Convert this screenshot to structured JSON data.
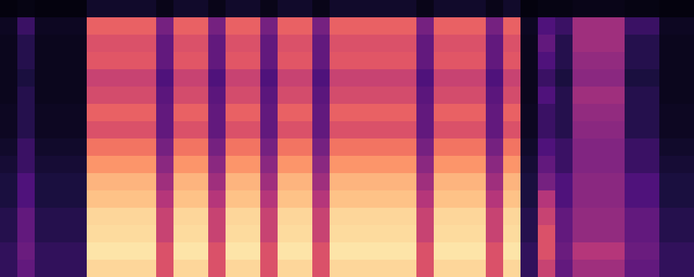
{
  "chart_data": {
    "type": "heatmap",
    "tick_labels": false,
    "grid": false,
    "xlim": [
      0,
      40
    ],
    "ylim": [
      0,
      16
    ],
    "zlim": [
      0,
      1
    ],
    "cells": [
      [
        0.02,
        0.03,
        0.02,
        0.02,
        0.02,
        0.08,
        0.08,
        0.08,
        0.08,
        0.04,
        0.08,
        0.08,
        0.04,
        0.08,
        0.08,
        0.04,
        0.08,
        0.08,
        0.04,
        0.08,
        0.08,
        0.08,
        0.08,
        0.08,
        0.04,
        0.08,
        0.08,
        0.08,
        0.04,
        0.08,
        0.02,
        0.03,
        0.03,
        0.04,
        0.04,
        0.04,
        0.03,
        0.03,
        0.02,
        0.02
      ],
      [
        0.06,
        0.2,
        0.06,
        0.06,
        0.06,
        0.65,
        0.65,
        0.65,
        0.65,
        0.35,
        0.65,
        0.65,
        0.35,
        0.65,
        0.65,
        0.35,
        0.65,
        0.65,
        0.35,
        0.65,
        0.65,
        0.65,
        0.65,
        0.65,
        0.35,
        0.65,
        0.65,
        0.65,
        0.35,
        0.65,
        0.06,
        0.25,
        0.2,
        0.45,
        0.45,
        0.45,
        0.2,
        0.2,
        0.06,
        0.06
      ],
      [
        0.05,
        0.15,
        0.05,
        0.05,
        0.05,
        0.6,
        0.6,
        0.6,
        0.6,
        0.3,
        0.6,
        0.6,
        0.3,
        0.6,
        0.6,
        0.3,
        0.6,
        0.6,
        0.3,
        0.6,
        0.6,
        0.6,
        0.6,
        0.6,
        0.3,
        0.6,
        0.6,
        0.6,
        0.3,
        0.6,
        0.05,
        0.3,
        0.15,
        0.45,
        0.45,
        0.45,
        0.15,
        0.15,
        0.05,
        0.05
      ],
      [
        0.05,
        0.15,
        0.05,
        0.05,
        0.05,
        0.62,
        0.62,
        0.62,
        0.62,
        0.3,
        0.62,
        0.62,
        0.3,
        0.62,
        0.62,
        0.3,
        0.62,
        0.62,
        0.3,
        0.62,
        0.62,
        0.62,
        0.62,
        0.62,
        0.3,
        0.62,
        0.62,
        0.62,
        0.3,
        0.62,
        0.05,
        0.25,
        0.15,
        0.42,
        0.42,
        0.42,
        0.15,
        0.15,
        0.05,
        0.05
      ],
      [
        0.05,
        0.12,
        0.05,
        0.05,
        0.05,
        0.55,
        0.55,
        0.55,
        0.55,
        0.25,
        0.55,
        0.55,
        0.25,
        0.55,
        0.55,
        0.25,
        0.55,
        0.55,
        0.25,
        0.55,
        0.55,
        0.55,
        0.55,
        0.55,
        0.25,
        0.55,
        0.55,
        0.55,
        0.25,
        0.55,
        0.05,
        0.2,
        0.12,
        0.4,
        0.4,
        0.4,
        0.12,
        0.12,
        0.05,
        0.05
      ],
      [
        0.05,
        0.15,
        0.05,
        0.05,
        0.05,
        0.58,
        0.58,
        0.58,
        0.58,
        0.28,
        0.58,
        0.58,
        0.28,
        0.58,
        0.58,
        0.28,
        0.58,
        0.58,
        0.28,
        0.58,
        0.58,
        0.58,
        0.58,
        0.58,
        0.28,
        0.58,
        0.58,
        0.58,
        0.28,
        0.58,
        0.05,
        0.25,
        0.15,
        0.45,
        0.45,
        0.45,
        0.15,
        0.15,
        0.05,
        0.05
      ],
      [
        0.06,
        0.15,
        0.06,
        0.06,
        0.06,
        0.65,
        0.65,
        0.65,
        0.65,
        0.3,
        0.65,
        0.65,
        0.3,
        0.65,
        0.65,
        0.3,
        0.65,
        0.65,
        0.3,
        0.65,
        0.65,
        0.65,
        0.65,
        0.65,
        0.3,
        0.65,
        0.65,
        0.65,
        0.3,
        0.65,
        0.06,
        0.2,
        0.15,
        0.42,
        0.42,
        0.42,
        0.15,
        0.15,
        0.06,
        0.06
      ],
      [
        0.06,
        0.15,
        0.06,
        0.06,
        0.06,
        0.6,
        0.6,
        0.6,
        0.6,
        0.3,
        0.6,
        0.6,
        0.3,
        0.6,
        0.6,
        0.3,
        0.6,
        0.6,
        0.3,
        0.6,
        0.6,
        0.6,
        0.6,
        0.6,
        0.3,
        0.6,
        0.6,
        0.6,
        0.3,
        0.6,
        0.06,
        0.2,
        0.15,
        0.4,
        0.4,
        0.4,
        0.15,
        0.15,
        0.06,
        0.06
      ],
      [
        0.08,
        0.2,
        0.08,
        0.08,
        0.08,
        0.7,
        0.7,
        0.7,
        0.7,
        0.35,
        0.7,
        0.7,
        0.35,
        0.7,
        0.7,
        0.35,
        0.7,
        0.7,
        0.35,
        0.7,
        0.7,
        0.7,
        0.7,
        0.7,
        0.35,
        0.7,
        0.7,
        0.7,
        0.35,
        0.7,
        0.08,
        0.25,
        0.2,
        0.38,
        0.38,
        0.38,
        0.2,
        0.2,
        0.08,
        0.08
      ],
      [
        0.1,
        0.2,
        0.1,
        0.1,
        0.1,
        0.78,
        0.78,
        0.78,
        0.78,
        0.4,
        0.78,
        0.78,
        0.4,
        0.78,
        0.78,
        0.4,
        0.78,
        0.78,
        0.4,
        0.78,
        0.78,
        0.78,
        0.78,
        0.78,
        0.4,
        0.78,
        0.78,
        0.78,
        0.4,
        0.78,
        0.1,
        0.3,
        0.2,
        0.38,
        0.38,
        0.38,
        0.2,
        0.2,
        0.1,
        0.1
      ],
      [
        0.12,
        0.25,
        0.12,
        0.12,
        0.12,
        0.85,
        0.85,
        0.85,
        0.85,
        0.45,
        0.85,
        0.85,
        0.45,
        0.85,
        0.85,
        0.45,
        0.85,
        0.85,
        0.45,
        0.85,
        0.85,
        0.85,
        0.85,
        0.85,
        0.45,
        0.85,
        0.85,
        0.85,
        0.45,
        0.85,
        0.12,
        0.35,
        0.25,
        0.4,
        0.4,
        0.4,
        0.25,
        0.25,
        0.12,
        0.12
      ],
      [
        0.12,
        0.25,
        0.12,
        0.12,
        0.12,
        0.88,
        0.88,
        0.88,
        0.88,
        0.5,
        0.88,
        0.88,
        0.5,
        0.88,
        0.88,
        0.5,
        0.88,
        0.88,
        0.5,
        0.88,
        0.88,
        0.88,
        0.88,
        0.88,
        0.5,
        0.88,
        0.88,
        0.88,
        0.5,
        0.88,
        0.12,
        0.5,
        0.25,
        0.4,
        0.4,
        0.4,
        0.25,
        0.25,
        0.12,
        0.12
      ],
      [
        0.15,
        0.3,
        0.15,
        0.15,
        0.15,
        0.92,
        0.92,
        0.92,
        0.92,
        0.55,
        0.92,
        0.92,
        0.55,
        0.92,
        0.92,
        0.55,
        0.92,
        0.92,
        0.55,
        0.92,
        0.92,
        0.92,
        0.92,
        0.92,
        0.55,
        0.92,
        0.92,
        0.92,
        0.55,
        0.92,
        0.15,
        0.55,
        0.3,
        0.42,
        0.42,
        0.42,
        0.3,
        0.3,
        0.15,
        0.15
      ],
      [
        0.15,
        0.3,
        0.15,
        0.15,
        0.15,
        0.93,
        0.93,
        0.93,
        0.93,
        0.55,
        0.93,
        0.93,
        0.55,
        0.93,
        0.93,
        0.55,
        0.93,
        0.93,
        0.55,
        0.93,
        0.93,
        0.93,
        0.93,
        0.93,
        0.55,
        0.93,
        0.93,
        0.93,
        0.55,
        0.93,
        0.15,
        0.6,
        0.3,
        0.42,
        0.42,
        0.42,
        0.3,
        0.3,
        0.15,
        0.15
      ],
      [
        0.18,
        0.32,
        0.18,
        0.18,
        0.18,
        0.95,
        0.95,
        0.95,
        0.95,
        0.6,
        0.95,
        0.95,
        0.6,
        0.95,
        0.95,
        0.6,
        0.95,
        0.95,
        0.6,
        0.95,
        0.95,
        0.95,
        0.95,
        0.95,
        0.6,
        0.95,
        0.95,
        0.95,
        0.6,
        0.95,
        0.18,
        0.6,
        0.32,
        0.5,
        0.5,
        0.5,
        0.32,
        0.32,
        0.18,
        0.18
      ],
      [
        0.18,
        0.3,
        0.18,
        0.18,
        0.18,
        0.92,
        0.92,
        0.92,
        0.92,
        0.6,
        0.92,
        0.92,
        0.6,
        0.92,
        0.92,
        0.6,
        0.92,
        0.92,
        0.6,
        0.92,
        0.92,
        0.92,
        0.92,
        0.92,
        0.6,
        0.92,
        0.92,
        0.92,
        0.6,
        0.92,
        0.18,
        0.55,
        0.3,
        0.45,
        0.45,
        0.45,
        0.3,
        0.3,
        0.18,
        0.18
      ]
    ]
  }
}
